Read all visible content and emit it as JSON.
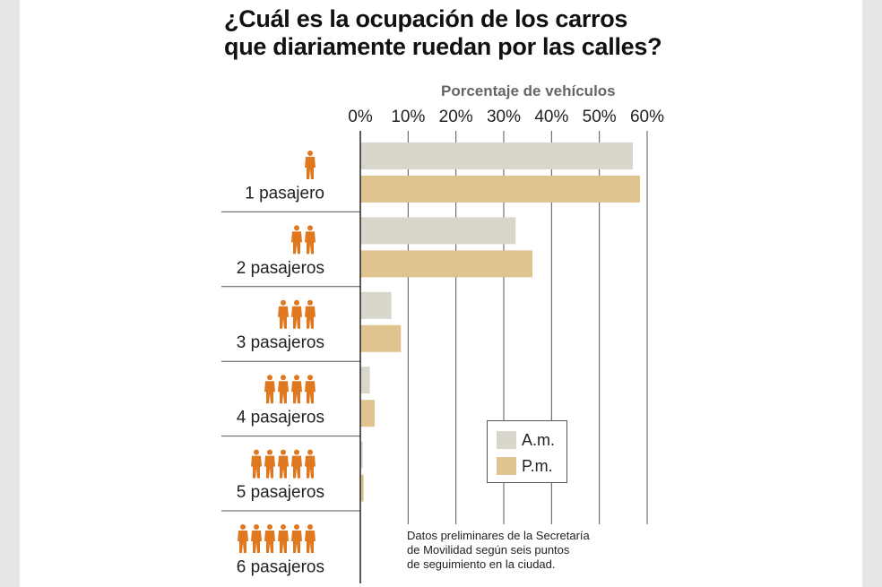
{
  "title_lines": [
    "¿Cuál es la ocupación de los carros",
    "que diariamente ruedan por las calles?"
  ],
  "note_lines": [
    "Datos preliminares de la Secretaría",
    "de Movilidad según seis puntos",
    "de seguimiento en la ciudad."
  ],
  "legend": [
    {
      "label": "A.m.",
      "color": "#d9d7cb"
    },
    {
      "label": "P.m.",
      "color": "#e0c48f"
    }
  ],
  "person_icon_color": "#e07820",
  "chart_data": {
    "type": "bar",
    "orientation": "horizontal",
    "title": "¿Cuál es la ocupación de los carros que diariamente ruedan por las calles?",
    "xlabel": "Porcentaje de vehículos",
    "ylabel": "",
    "xlim": [
      0,
      60
    ],
    "xticks": [
      "0%",
      "10%",
      "20%",
      "30%",
      "40%",
      "50%",
      "60%"
    ],
    "grid": true,
    "categories": [
      "1 pasajero",
      "2 pasajeros",
      "3 pasajeros",
      "4 pasajeros",
      "5 pasajeros",
      "6 pasajeros"
    ],
    "icon_counts": [
      1,
      2,
      3,
      4,
      5,
      6
    ],
    "series": [
      {
        "name": "A.m.",
        "color": "#d9d7cb",
        "values": [
          57,
          32.5,
          6.5,
          2,
          0.5,
          0
        ]
      },
      {
        "name": "P.m.",
        "color": "#e0c48f",
        "values": [
          58.5,
          36,
          8.5,
          3,
          0.7,
          0
        ]
      }
    ],
    "legend_position": "bottom-right"
  }
}
